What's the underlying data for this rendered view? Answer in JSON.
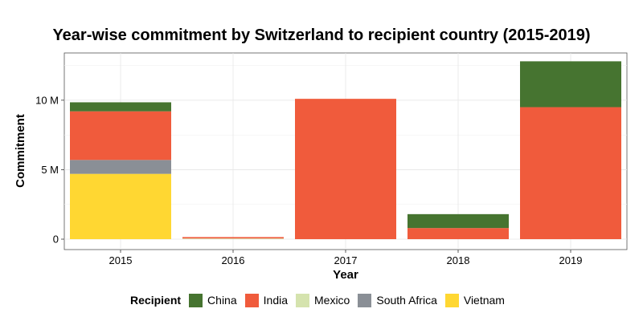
{
  "chart_data": {
    "type": "bar",
    "stacked": true,
    "title": "Year-wise commitment by Switzerland to recipient country (2015-2019)",
    "xlabel": "Year",
    "ylabel": "Commitment",
    "categories": [
      "2015",
      "2016",
      "2017",
      "2018",
      "2019"
    ],
    "ylim": [
      -0.75,
      13.4
    ],
    "yticks": [
      {
        "value": 0,
        "label": "0"
      },
      {
        "value": 5,
        "label": "5 M"
      },
      {
        "value": 10,
        "label": "10 M"
      }
    ],
    "unit": "M",
    "grid": true,
    "legend_position": "bottom",
    "legend_title": "Recipient",
    "series": [
      {
        "name": "Vietnam",
        "color": "#FFD732",
        "values": [
          4.7,
          0,
          0,
          0,
          0
        ]
      },
      {
        "name": "South Africa",
        "color": "#8A8F96",
        "values": [
          1.0,
          0,
          0,
          0,
          0
        ]
      },
      {
        "name": "Mexico",
        "color": "#D5E3AE",
        "values": [
          0,
          0.05,
          0,
          0,
          0
        ]
      },
      {
        "name": "India",
        "color": "#F05B3C",
        "values": [
          3.5,
          0.1,
          10.1,
          0.8,
          9.5
        ]
      },
      {
        "name": "China",
        "color": "#467430",
        "values": [
          0.65,
          0,
          0,
          1.0,
          3.3
        ]
      }
    ],
    "legend_order": [
      "China",
      "India",
      "Mexico",
      "South Africa",
      "Vietnam"
    ]
  }
}
